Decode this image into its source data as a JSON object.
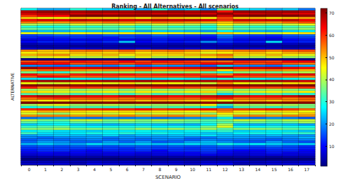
{
  "chart_data": {
    "type": "heatmap",
    "title": "Ranking - All Alternatives - All scenarios",
    "x_label": "SCENARIO",
    "y_label": "ALTERNATIVE",
    "tick_labels": "x",
    "categories": [
      "0",
      "1",
      "2",
      "3",
      "4",
      "5",
      "6",
      "7",
      "8",
      "9",
      "10",
      "11",
      "12",
      "13",
      "14",
      "15",
      "16",
      "17"
    ],
    "rows": [
      null,
      null,
      null,
      null,
      null,
      null,
      null,
      null,
      null,
      null,
      null,
      null,
      null,
      null,
      null,
      null,
      null,
      null,
      null,
      null,
      null,
      null,
      null,
      null,
      null,
      null,
      null,
      null,
      null,
      null,
      null,
      null,
      null,
      null,
      null,
      null,
      null,
      null,
      null,
      null,
      null,
      null,
      null,
      null,
      null,
      null,
      null,
      null,
      null,
      null,
      null,
      null,
      null,
      null,
      null,
      null,
      null,
      null,
      null,
      null,
      null,
      null,
      null,
      null,
      null,
      null,
      null,
      null,
      null,
      null,
      null,
      null
    ],
    "cells": [
      [
        28,
        22,
        22,
        30,
        27,
        24,
        26,
        22,
        30,
        23,
        25,
        20,
        35,
        26,
        25,
        22,
        24,
        18
      ],
      [
        68,
        70,
        70,
        69,
        70,
        70,
        69,
        70,
        70,
        70,
        69,
        70,
        62,
        70,
        70,
        69,
        70,
        68
      ],
      [
        66,
        67,
        68,
        66,
        67,
        66,
        67,
        68,
        66,
        67,
        67,
        66,
        70,
        66,
        67,
        68,
        66,
        65
      ],
      [
        60,
        64,
        63,
        71,
        72,
        71,
        71,
        71,
        72,
        71,
        72,
        71,
        66,
        71,
        72,
        71,
        72,
        70
      ],
      [
        48,
        45,
        46,
        50,
        49,
        48,
        50,
        47,
        52,
        49,
        48,
        46,
        58,
        49,
        50,
        47,
        49,
        51
      ],
      [
        62,
        65,
        64,
        67,
        66,
        67,
        65,
        66,
        67,
        66,
        67,
        65,
        60,
        66,
        65,
        66,
        67,
        63
      ],
      [
        55,
        52,
        53,
        55,
        54,
        56,
        55,
        53,
        56,
        55,
        54,
        52,
        50,
        55,
        54,
        53,
        56,
        58
      ],
      [
        40,
        38,
        37,
        42,
        41,
        40,
        43,
        39,
        42,
        41,
        40,
        36,
        45,
        41,
        40,
        39,
        42,
        44
      ],
      [
        30,
        28,
        29,
        31,
        30,
        32,
        31,
        29,
        33,
        30,
        31,
        28,
        36,
        31,
        30,
        29,
        32,
        34
      ],
      [
        35,
        34,
        33,
        36,
        35,
        34,
        37,
        33,
        36,
        35,
        34,
        32,
        40,
        35,
        34,
        33,
        36,
        38
      ],
      [
        22,
        24,
        23,
        25,
        24,
        23,
        26,
        22,
        25,
        24,
        23,
        21,
        28,
        24,
        23,
        22,
        25,
        27
      ],
      [
        44,
        41,
        42,
        45,
        44,
        43,
        46,
        42,
        45,
        44,
        43,
        40,
        48,
        44,
        43,
        42,
        45,
        47
      ],
      [
        14,
        15,
        16,
        15,
        14,
        16,
        15,
        14,
        17,
        15,
        14,
        13,
        19,
        15,
        14,
        13,
        16,
        17
      ],
      [
        12,
        11,
        12,
        13,
        12,
        11,
        14,
        12,
        13,
        12,
        11,
        10,
        16,
        12,
        11,
        10,
        13,
        14
      ],
      [
        8,
        9,
        10,
        9,
        8,
        10,
        9,
        8,
        11,
        9,
        8,
        7,
        12,
        9,
        8,
        7,
        10,
        11
      ],
      [
        10,
        12,
        11,
        12,
        11,
        13,
        24,
        10,
        12,
        11,
        12,
        20,
        14,
        11,
        12,
        26,
        11,
        12
      ],
      [
        5,
        6,
        6,
        6,
        5,
        6,
        5,
        6,
        6,
        5,
        6,
        5,
        7,
        5,
        6,
        5,
        6,
        5
      ],
      [
        3,
        3,
        4,
        3,
        3,
        4,
        3,
        3,
        4,
        3,
        3,
        4,
        4,
        3,
        3,
        4,
        3,
        3
      ],
      [
        6,
        5,
        5,
        7,
        6,
        5,
        6,
        7,
        5,
        6,
        7,
        6,
        5,
        6,
        7,
        6,
        5,
        6
      ],
      [
        54,
        50,
        51,
        55,
        56,
        54,
        57,
        53,
        55,
        56,
        54,
        50,
        52,
        55,
        56,
        54,
        57,
        58
      ],
      [
        46,
        48,
        47,
        50,
        49,
        48,
        51,
        47,
        49,
        50,
        48,
        44,
        46,
        49,
        50,
        47,
        51,
        52
      ],
      [
        50,
        52,
        53,
        47,
        48,
        50,
        46,
        49,
        47,
        48,
        50,
        52,
        55,
        48,
        47,
        50,
        46,
        44
      ],
      [
        42,
        44,
        45,
        40,
        41,
        43,
        39,
        44,
        40,
        41,
        43,
        46,
        50,
        41,
        40,
        43,
        39,
        38
      ],
      [
        2,
        2,
        2,
        2,
        2,
        2,
        2,
        2,
        2,
        2,
        2,
        2,
        2,
        2,
        2,
        2,
        2,
        2
      ],
      [
        58,
        60,
        59,
        62,
        61,
        60,
        63,
        59,
        62,
        61,
        60,
        57,
        56,
        61,
        60,
        59,
        63,
        64
      ],
      [
        64,
        62,
        63,
        58,
        59,
        60,
        58,
        61,
        58,
        59,
        60,
        63,
        64,
        59,
        58,
        60,
        57,
        55
      ],
      [
        20,
        19,
        18,
        21,
        20,
        19,
        22,
        18,
        21,
        20,
        19,
        17,
        24,
        20,
        19,
        18,
        22,
        23
      ],
      [
        69,
        66,
        65,
        64,
        65,
        66,
        64,
        65,
        63,
        64,
        65,
        67,
        69,
        64,
        65,
        66,
        64,
        62
      ],
      [
        52,
        56,
        55,
        53,
        52,
        53,
        52,
        54,
        51,
        52,
        53,
        55,
        47,
        52,
        53,
        54,
        52,
        50
      ],
      [
        36,
        32,
        31,
        38,
        37,
        36,
        38,
        35,
        37,
        36,
        38,
        33,
        30,
        37,
        36,
        35,
        38,
        40
      ],
      [
        63,
        58,
        57,
        61,
        62,
        61,
        62,
        60,
        61,
        62,
        61,
        58,
        54,
        62,
        61,
        60,
        62,
        65
      ],
      [
        57,
        63,
        62,
        56,
        57,
        58,
        56,
        57,
        57,
        57,
        58,
        61,
        63,
        57,
        58,
        57,
        56,
        54
      ],
      [
        26,
        27,
        28,
        28,
        27,
        26,
        28,
        26,
        27,
        28,
        27,
        25,
        30,
        27,
        28,
        26,
        28,
        29
      ],
      [
        67,
        69,
        69,
        68,
        68,
        69,
        68,
        69,
        68,
        68,
        69,
        68,
        66,
        68,
        69,
        68,
        68,
        66
      ],
      [
        45,
        42,
        43,
        46,
        45,
        44,
        47,
        43,
        46,
        45,
        44,
        42,
        52,
        45,
        44,
        43,
        47,
        48
      ],
      [
        71,
        71,
        71,
        70,
        71,
        72,
        70,
        72,
        71,
        72,
        71,
        72,
        71,
        72,
        71,
        72,
        71,
        72
      ],
      [
        61,
        55,
        56,
        60,
        59,
        58,
        59,
        58,
        60,
        59,
        58,
        56,
        59,
        60,
        59,
        58,
        59,
        60
      ],
      [
        38,
        40,
        41,
        37,
        38,
        39,
        36,
        40,
        38,
        37,
        39,
        41,
        42,
        38,
        37,
        39,
        37,
        35
      ],
      [
        48,
        46,
        44,
        43,
        44,
        45,
        42,
        46,
        44,
        43,
        45,
        47,
        38,
        43,
        44,
        45,
        43,
        46
      ],
      [
        33,
        35,
        36,
        32,
        33,
        34,
        31,
        36,
        32,
        33,
        34,
        37,
        26,
        33,
        32,
        34,
        31,
        30
      ],
      [
        65,
        68,
        67,
        65,
        64,
        63,
        66,
        64,
        65,
        63,
        64,
        66,
        67,
        65,
        63,
        64,
        66,
        69
      ],
      [
        56,
        59,
        60,
        57,
        58,
        57,
        56,
        58,
        59,
        58,
        57,
        60,
        61,
        56,
        57,
        58,
        55,
        57
      ],
      [
        50,
        47,
        48,
        51,
        51,
        50,
        53,
        50,
        52,
        51,
        50,
        49,
        44,
        51,
        52,
        50,
        53,
        55
      ],
      [
        72,
        72,
        72,
        72,
        72,
        71,
        72,
        71,
        72,
        71,
        72,
        70,
        72,
        71,
        72,
        71,
        72,
        71
      ],
      [
        39,
        43,
        44,
        39,
        40,
        41,
        40,
        41,
        39,
        40,
        41,
        45,
        32,
        40,
        39,
        41,
        40,
        37
      ],
      [
        29,
        31,
        32,
        33,
        32,
        31,
        33,
        31,
        34,
        32,
        31,
        30,
        22,
        32,
        33,
        31,
        33,
        36
      ],
      [
        60,
        61,
        61,
        59,
        60,
        61,
        60,
        62,
        59,
        60,
        61,
        62,
        57,
        59,
        60,
        61,
        59,
        56
      ],
      [
        47,
        51,
        50,
        48,
        47,
        47,
        48,
        48,
        47,
        47,
        46,
        48,
        53,
        47,
        46,
        48,
        48,
        45
      ],
      [
        43,
        39,
        38,
        44,
        43,
        42,
        45,
        41,
        43,
        42,
        42,
        38,
        46,
        43,
        42,
        41,
        44,
        49
      ],
      [
        53,
        54,
        54,
        52,
        53,
        52,
        54,
        52,
        53,
        54,
        52,
        51,
        41,
        53,
        54,
        52,
        54,
        53
      ],
      [
        18,
        20,
        21,
        19,
        18,
        20,
        19,
        20,
        18,
        19,
        20,
        22,
        27,
        19,
        18,
        20,
        19,
        16
      ],
      [
        41,
        36,
        35,
        41,
        42,
        37,
        41,
        37,
        41,
        39,
        37,
        34,
        37,
        42,
        41,
        37,
        41,
        42
      ],
      [
        34,
        30,
        30,
        34,
        34,
        33,
        35,
        34,
        35,
        34,
        33,
        31,
        33,
        34,
        35,
        33,
        35,
        39
      ],
      [
        24,
        26,
        27,
        24,
        23,
        22,
        23,
        24,
        23,
        22,
        22,
        27,
        39,
        23,
        22,
        24,
        23,
        21
      ],
      [
        31,
        33,
        34,
        29,
        28,
        29,
        29,
        30,
        28,
        29,
        29,
        35,
        43,
        29,
        28,
        30,
        29,
        28
      ],
      [
        37,
        37,
        39,
        35,
        36,
        35,
        34,
        38,
        36,
        38,
        35,
        39,
        34,
        36,
        37,
        36,
        34,
        33
      ],
      [
        27,
        29,
        26,
        26,
        25,
        27,
        27,
        28,
        26,
        26,
        28,
        29,
        31,
        25,
        26,
        27,
        26,
        24
      ],
      [
        32,
        26,
        25,
        27,
        29,
        28,
        30,
        27,
        29,
        27,
        26,
        24,
        25,
        28,
        29,
        28,
        30,
        31
      ],
      [
        21,
        23,
        24,
        23,
        22,
        25,
        21,
        23,
        22,
        23,
        24,
        26,
        23,
        22,
        21,
        23,
        21,
        20
      ],
      [
        19,
        17,
        19,
        20,
        21,
        18,
        20,
        19,
        20,
        21,
        18,
        18,
        21,
        21,
        20,
        19,
        20,
        22
      ],
      [
        16,
        18,
        17,
        18,
        19,
        17,
        18,
        17,
        19,
        18,
        16,
        19,
        18,
        18,
        17,
        16,
        18,
        19
      ],
      [
        17,
        21,
        20,
        17,
        17,
        21,
        17,
        21,
        16,
        17,
        21,
        23,
        20,
        17,
        16,
        21,
        17,
        15
      ],
      [
        23,
        25,
        22,
        22,
        26,
        24,
        24,
        25,
        24,
        25,
        26,
        24,
        29,
        26,
        27,
        25,
        24,
        25
      ],
      [
        15,
        16,
        15,
        16,
        16,
        15,
        16,
        16,
        15,
        16,
        15,
        16,
        17,
        16,
        15,
        17,
        15,
        13
      ],
      [
        13,
        14,
        14,
        14,
        13,
        14,
        13,
        15,
        14,
        14,
        13,
        15,
        15,
        14,
        13,
        14,
        14,
        12
      ],
      [
        11,
        13,
        13,
        11,
        10,
        12,
        12,
        13,
        10,
        13,
        13,
        14,
        11,
        10,
        10,
        12,
        12,
        10
      ],
      [
        9,
        10,
        9,
        10,
        9,
        9,
        10,
        9,
        9,
        10,
        10,
        12,
        10,
        8,
        9,
        11,
        9,
        9
      ],
      [
        7,
        8,
        8,
        8,
        7,
        8,
        8,
        7,
        8,
        8,
        9,
        9,
        8,
        7,
        8,
        8,
        8,
        7
      ],
      [
        4,
        4,
        3,
        4,
        4,
        3,
        4,
        4,
        3,
        4,
        4,
        3,
        3,
        4,
        4,
        3,
        4,
        4
      ],
      [
        1,
        1,
        1,
        1,
        1,
        1,
        1,
        1,
        1,
        1,
        1,
        1,
        1,
        1,
        1,
        1,
        1,
        1
      ],
      [
        5,
        5,
        5,
        5,
        6,
        5,
        6,
        5,
        5,
        6,
        5,
        6,
        6,
        6,
        5,
        6,
        5,
        6
      ],
      [
        6,
        7,
        7,
        5,
        8,
        7,
        7,
        6,
        7,
        7,
        6,
        8,
        9,
        5,
        6,
        7,
        7,
        8
      ]
    ],
    "colorbar": {
      "range": [
        1,
        72
      ],
      "ticks": [
        10,
        20,
        30,
        40,
        50,
        60,
        70
      ]
    }
  }
}
